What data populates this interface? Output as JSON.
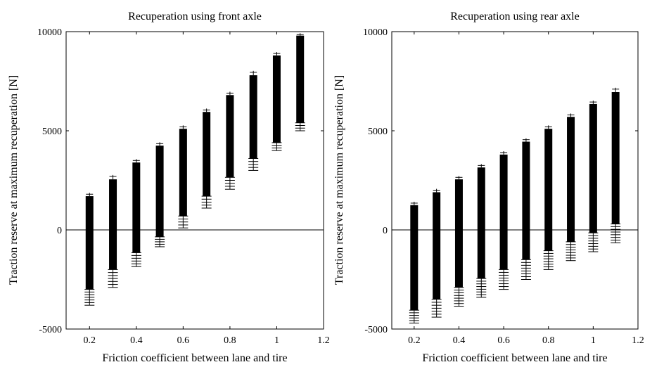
{
  "chart_data": [
    {
      "type": "range",
      "title": "Recuperation using front axle",
      "xlabel": "Friction coefficient between lane and tire",
      "ylabel": "Traction reserve at maximum recuperation [N]",
      "xlim": [
        0.1,
        1.2
      ],
      "ylim": [
        -5000,
        10000
      ],
      "xticks": [
        0.2,
        0.4,
        0.6,
        0.8,
        1,
        1.2
      ],
      "xtick_labels": [
        "0.2",
        "0.4",
        "0.6",
        "0.8",
        "1",
        "1.2"
      ],
      "yticks": [
        -5000,
        0,
        5000,
        10000
      ],
      "ytick_labels": [
        "-5000",
        "0",
        "5000",
        "10000"
      ],
      "zero_line": true,
      "marker": "+",
      "series": [
        {
          "x": 0.2,
          "low": -3800,
          "high": 1800,
          "solid_low": -3000,
          "solid_high": 1700
        },
        {
          "x": 0.3,
          "low": -2900,
          "high": 2700,
          "solid_low": -2000,
          "solid_high": 2550
        },
        {
          "x": 0.4,
          "low": -1850,
          "high": 3500,
          "solid_low": -1150,
          "solid_high": 3400
        },
        {
          "x": 0.5,
          "low": -850,
          "high": 4350,
          "solid_low": -350,
          "solid_high": 4250
        },
        {
          "x": 0.6,
          "low": 100,
          "high": 5200,
          "solid_low": 700,
          "solid_high": 5100
        },
        {
          "x": 0.7,
          "low": 1100,
          "high": 6050,
          "solid_low": 1700,
          "solid_high": 5950
        },
        {
          "x": 0.8,
          "low": 2050,
          "high": 6900,
          "solid_low": 2650,
          "solid_high": 6800
        },
        {
          "x": 0.9,
          "low": 3000,
          "high": 7950,
          "solid_low": 3600,
          "solid_high": 7800
        },
        {
          "x": 1.0,
          "low": 4000,
          "high": 8900,
          "solid_low": 4400,
          "solid_high": 8800
        },
        {
          "x": 1.1,
          "low": 5000,
          "high": 9850,
          "solid_low": 5400,
          "solid_high": 9800
        }
      ]
    },
    {
      "type": "range",
      "title": "Recuperation using rear axle",
      "xlabel": "Friction coefficient between lane and tire",
      "ylabel": "Traction reserve at maximum recuperation [N]",
      "xlim": [
        0.1,
        1.2
      ],
      "ylim": [
        -5000,
        10000
      ],
      "xticks": [
        0.2,
        0.4,
        0.6,
        0.8,
        1,
        1.2
      ],
      "xtick_labels": [
        "0.2",
        "0.4",
        "0.6",
        "0.8",
        "1",
        "1.2"
      ],
      "yticks": [
        -5000,
        0,
        5000,
        10000
      ],
      "ytick_labels": [
        "-5000",
        "0",
        "5000",
        "10000"
      ],
      "zero_line": true,
      "marker": "+",
      "series": [
        {
          "x": 0.2,
          "low": -4700,
          "high": 1350,
          "solid_low": -4050,
          "solid_high": 1250
        },
        {
          "x": 0.3,
          "low": -4400,
          "high": 2000,
          "solid_low": -3500,
          "solid_high": 1900
        },
        {
          "x": 0.4,
          "low": -3850,
          "high": 2650,
          "solid_low": -2900,
          "solid_high": 2550
        },
        {
          "x": 0.5,
          "low": -3400,
          "high": 3250,
          "solid_low": -2450,
          "solid_high": 3150
        },
        {
          "x": 0.6,
          "low": -3000,
          "high": 3900,
          "solid_low": -2000,
          "solid_high": 3800
        },
        {
          "x": 0.7,
          "low": -2500,
          "high": 4550,
          "solid_low": -1500,
          "solid_high": 4450
        },
        {
          "x": 0.8,
          "low": -2000,
          "high": 5200,
          "solid_low": -1050,
          "solid_high": 5100
        },
        {
          "x": 0.9,
          "low": -1550,
          "high": 5800,
          "solid_low": -600,
          "solid_high": 5700
        },
        {
          "x": 1.0,
          "low": -1100,
          "high": 6450,
          "solid_low": -150,
          "solid_high": 6350
        },
        {
          "x": 1.1,
          "low": -650,
          "high": 7100,
          "solid_low": 300,
          "solid_high": 6950
        }
      ]
    }
  ]
}
